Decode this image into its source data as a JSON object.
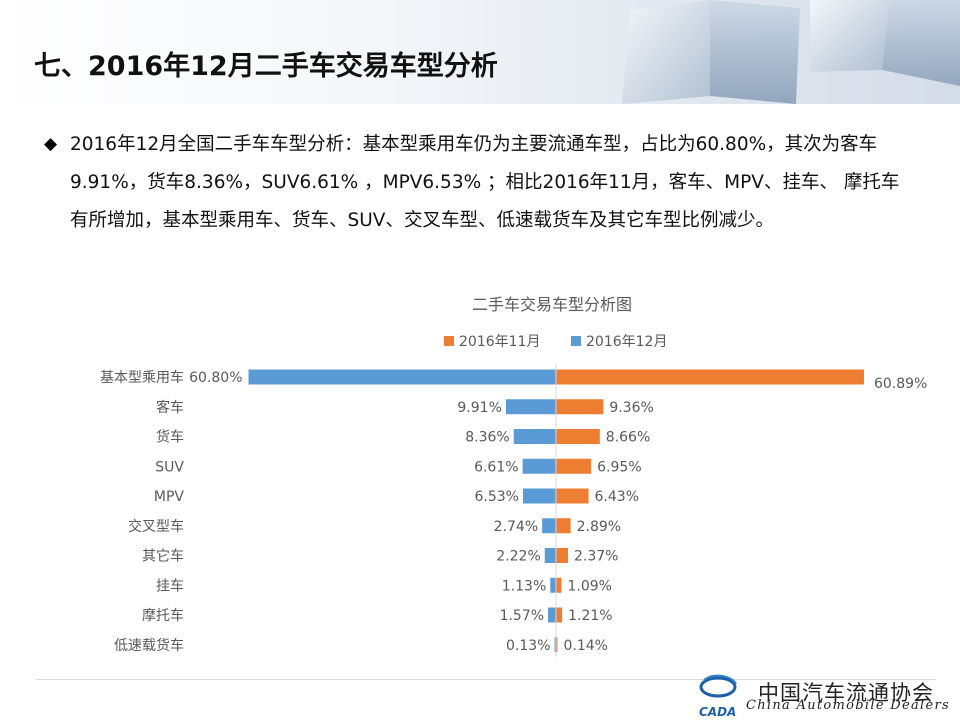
{
  "slide": {
    "title": "七、2016年12月二手车交易车型分析",
    "bullet_icon": "diamond-bullet-icon",
    "bullet_text": "2016年12月全国二手车车型分析：基本型乘用车仍为主要流通车型，占比为60.80%，其次为客车9.91%，货车8.36%，SUV6.61% ，MPV6.53% ；相比2016年11月，客车、MPV、挂车、 摩托车有所增加，基本型乘用车、货车、SUV、交叉车型、低速载货车及其它车型比例减少。"
  },
  "footer": {
    "org_cn": "中国汽车流通协会",
    "org_en": "China  Automobile Dealers",
    "logo_text": "CADA",
    "logo_icon": "cada-logo-icon"
  },
  "colors": {
    "dec_series": "#5B9BD5",
    "nov_series": "#ED7D31",
    "label_text": "#595959"
  },
  "chart_data": {
    "type": "bar",
    "orientation": "horizontal-butterfly",
    "title": "二手车交易车型分析图",
    "legend_position": "top",
    "categories": [
      "基本型乘用车",
      "客车",
      "货车",
      "SUV",
      "MPV",
      "交叉型车",
      "其它车",
      "挂车",
      "摩托车",
      "低速载货车"
    ],
    "series": [
      {
        "name": "2016年11月",
        "side": "right",
        "color": "#ED7D31",
        "values": [
          60.89,
          9.36,
          8.66,
          6.95,
          6.43,
          2.89,
          2.37,
          1.09,
          1.21,
          0.14
        ],
        "labels": [
          "60.89%",
          "9.36%",
          "8.66%",
          "6.95%",
          "6.43%",
          "2.89%",
          "2.37%",
          "1.09%",
          "1.21%",
          "0.14%"
        ]
      },
      {
        "name": "2016年12月",
        "side": "left",
        "color": "#5B9BD5",
        "values": [
          60.8,
          9.91,
          8.36,
          6.61,
          6.53,
          2.74,
          2.22,
          1.13,
          1.57,
          0.13
        ],
        "labels": [
          "60.80%",
          "9.91%",
          "8.36%",
          "6.61%",
          "6.53%",
          "2.74%",
          "2.22%",
          "1.13%",
          "1.57%",
          "0.13%"
        ]
      }
    ],
    "value_unit": "%",
    "axis_range": [
      -61,
      61
    ],
    "grid": false
  }
}
